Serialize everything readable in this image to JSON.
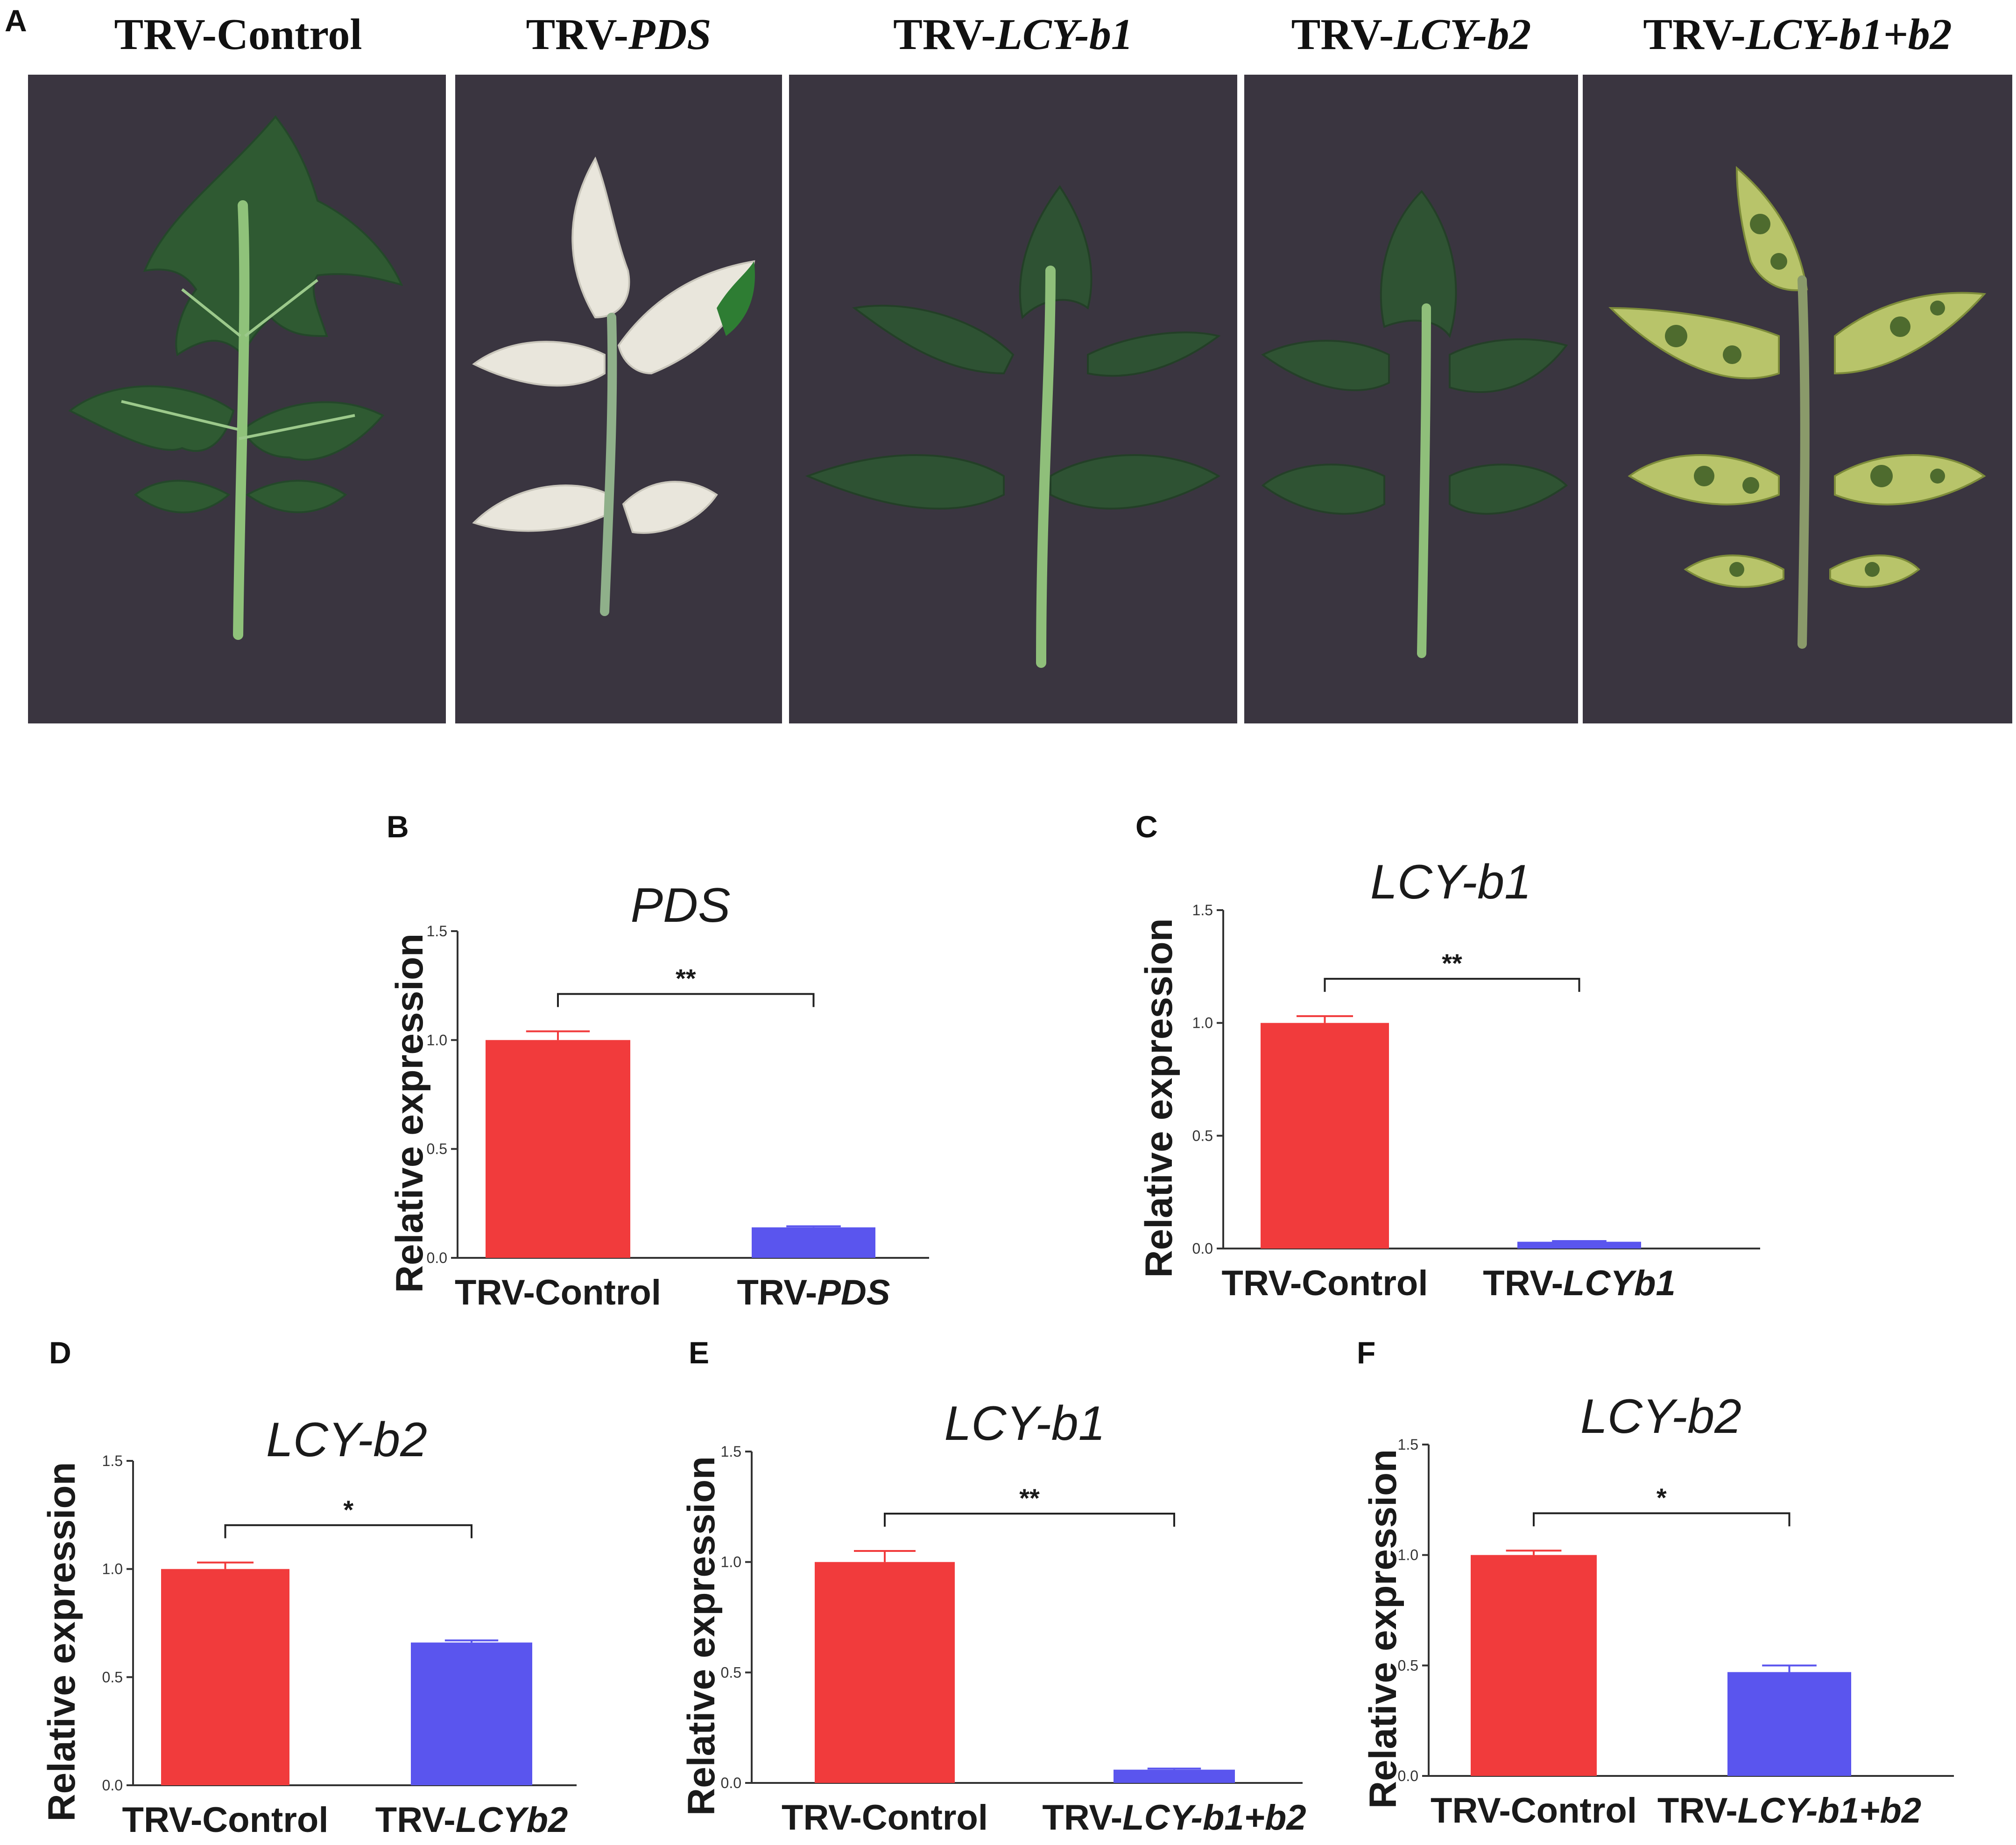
{
  "panel_a": {
    "label": "A",
    "photos": [
      {
        "prefix": "TRV-",
        "gene": "Control"
      },
      {
        "prefix": "TRV-",
        "gene": "PDS"
      },
      {
        "prefix": "TRV-",
        "gene": "LCY-b1"
      },
      {
        "prefix": "TRV-",
        "gene": "LCY-b2"
      },
      {
        "prefix": "TRV-",
        "gene": "LCY-b1+b2"
      }
    ]
  },
  "colors": {
    "control": "#f13b3c",
    "silenced": "#5a55ee",
    "photo_bg": "#3a3540",
    "leaf_green": "#2f5a32",
    "leaf_white": "#e9e6dc"
  },
  "chart_data": [
    {
      "panel": "B",
      "type": "bar",
      "title": "PDS",
      "ylabel": "Relative expression",
      "ylim": [
        0,
        1.5
      ],
      "yticks": [
        "0.0",
        "0.5",
        "1.0",
        "1.5"
      ],
      "categories": [
        {
          "prefix": "TRV-",
          "gene": "Control"
        },
        {
          "prefix": "TRV-",
          "gene": "PDS"
        }
      ],
      "values": [
        1.0,
        0.14
      ],
      "errors": [
        0.04,
        0.005
      ],
      "significance": "**"
    },
    {
      "panel": "C",
      "type": "bar",
      "title": "LCY-b1",
      "ylabel": "Relative expression",
      "ylim": [
        0,
        1.5
      ],
      "yticks": [
        "0.0",
        "0.5",
        "1.0",
        "1.5"
      ],
      "categories": [
        {
          "prefix": "TRV-",
          "gene": "Control"
        },
        {
          "prefix": "TRV-",
          "gene": "LCYb1"
        }
      ],
      "values": [
        1.0,
        0.03
      ],
      "errors": [
        0.03,
        0.003
      ],
      "significance": "**"
    },
    {
      "panel": "D",
      "type": "bar",
      "title": "LCY-b2",
      "ylabel": "Relative expression",
      "ylim": [
        0,
        1.5
      ],
      "yticks": [
        "0.0",
        "0.5",
        "1.0",
        "1.5"
      ],
      "categories": [
        {
          "prefix": "TRV-",
          "gene": "Control"
        },
        {
          "prefix": "TRV-",
          "gene": "LCYb2"
        }
      ],
      "values": [
        1.0,
        0.66
      ],
      "errors": [
        0.03,
        0.01
      ],
      "significance": "*"
    },
    {
      "panel": "E",
      "type": "bar",
      "title": "LCY-b1",
      "ylabel": "Relative expression",
      "ylim": [
        0,
        1.5
      ],
      "yticks": [
        "0.0",
        "0.5",
        "1.0",
        "1.5"
      ],
      "categories": [
        {
          "prefix": "TRV-",
          "gene": "Control"
        },
        {
          "prefix": "TRV-",
          "gene": "LCY-b1+b2"
        }
      ],
      "values": [
        1.0,
        0.06
      ],
      "errors": [
        0.05,
        0.005
      ],
      "significance": "**"
    },
    {
      "panel": "F",
      "type": "bar",
      "title": "LCY-b2",
      "ylabel": "Relative expression",
      "ylim": [
        0,
        1.5
      ],
      "yticks": [
        "0.0",
        "0.5",
        "1.0",
        "1.5"
      ],
      "categories": [
        {
          "prefix": "TRV-",
          "gene": "Control"
        },
        {
          "prefix": "TRV-",
          "gene": "LCY-b1+b2"
        }
      ],
      "values": [
        1.0,
        0.47
      ],
      "errors": [
        0.02,
        0.03
      ],
      "significance": "*"
    }
  ]
}
